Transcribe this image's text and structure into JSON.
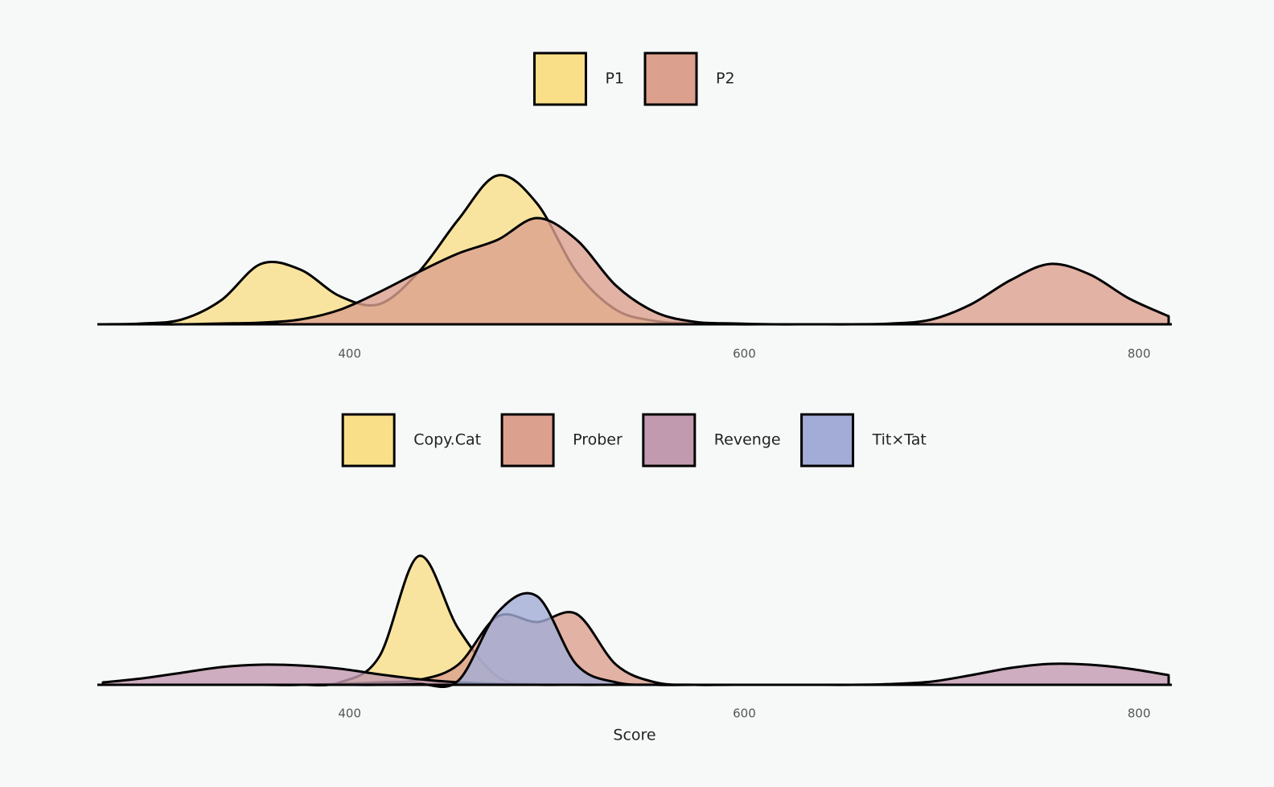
{
  "chart_data": [
    {
      "type": "area",
      "x": [
        275,
        295,
        315,
        335,
        355,
        375,
        395,
        415,
        435,
        455,
        475,
        495,
        515,
        535,
        555,
        575,
        595,
        615,
        635,
        655,
        675,
        695,
        715,
        735,
        755,
        775,
        795,
        815
      ],
      "series": [
        {
          "name": "P1",
          "color": "#f9df88",
          "values": [
            0,
            1,
            6,
            30,
            75,
            68,
            35,
            25,
            65,
            130,
            185,
            150,
            65,
            18,
            4,
            1,
            0,
            0,
            0,
            0,
            0,
            0,
            0,
            0,
            0,
            0,
            0,
            0
          ]
        },
        {
          "name": "P2",
          "color": "#dca08f",
          "values": [
            0,
            0,
            0,
            1,
            2,
            6,
            18,
            40,
            65,
            88,
            105,
            132,
            105,
            48,
            15,
            3,
            1,
            0,
            0,
            0,
            1,
            6,
            25,
            55,
            75,
            62,
            32,
            10
          ]
        }
      ],
      "xlim": [
        275,
        815
      ],
      "xticks": [
        400,
        600,
        800
      ],
      "ylim": [
        0,
        200
      ]
    },
    {
      "type": "area",
      "x": [
        275,
        295,
        315,
        335,
        355,
        375,
        395,
        415,
        435,
        455,
        475,
        495,
        515,
        535,
        555,
        575,
        595,
        615,
        635,
        655,
        675,
        695,
        715,
        735,
        755,
        775,
        795,
        815
      ],
      "x_label": "Score",
      "series": [
        {
          "name": "Copy.Cat",
          "color": "#f9df88",
          "values": [
            0,
            0,
            0,
            0,
            0,
            0,
            3,
            35,
            160,
            70,
            10,
            1,
            0,
            0,
            0,
            0,
            0,
            0,
            0,
            0,
            0,
            0,
            0,
            0,
            0,
            0,
            0,
            0
          ]
        },
        {
          "name": "Prober",
          "color": "#dca08f",
          "values": [
            0,
            0,
            0,
            0,
            0,
            0,
            1,
            3,
            6,
            25,
            85,
            78,
            88,
            25,
            3,
            0,
            0,
            0,
            0,
            0,
            0,
            0,
            0,
            0,
            0,
            0,
            0,
            0
          ]
        },
        {
          "name": "Revenge",
          "color": "#c29ab0",
          "values": [
            3,
            8,
            15,
            22,
            25,
            24,
            20,
            13,
            7,
            3,
            1,
            0,
            0,
            0,
            0,
            0,
            0,
            0,
            0,
            0,
            1,
            4,
            12,
            21,
            26,
            25,
            20,
            12
          ]
        },
        {
          "name": "Tit×Tat",
          "color": "#a2acd6",
          "values": [
            0,
            0,
            0,
            0,
            0,
            0,
            0,
            0,
            1,
            5,
            90,
            110,
            25,
            3,
            0,
            0,
            0,
            0,
            0,
            0,
            0,
            0,
            0,
            0,
            0,
            0,
            0,
            0
          ]
        }
      ],
      "xlim": [
        275,
        815
      ],
      "xticks": [
        400,
        600,
        800
      ],
      "ylim": [
        0,
        200
      ]
    }
  ]
}
